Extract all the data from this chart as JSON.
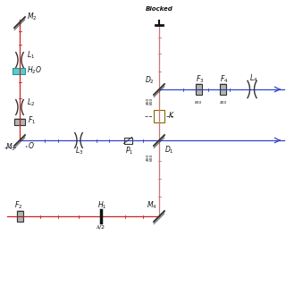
{
  "bg_color": "#ffffff",
  "red_color": "#cc2222",
  "blue_color": "#3344cc",
  "pink_color": "#cc7777",
  "teal_color": "#22bbbb",
  "dark": "#333333",
  "text_color": "#111111"
}
